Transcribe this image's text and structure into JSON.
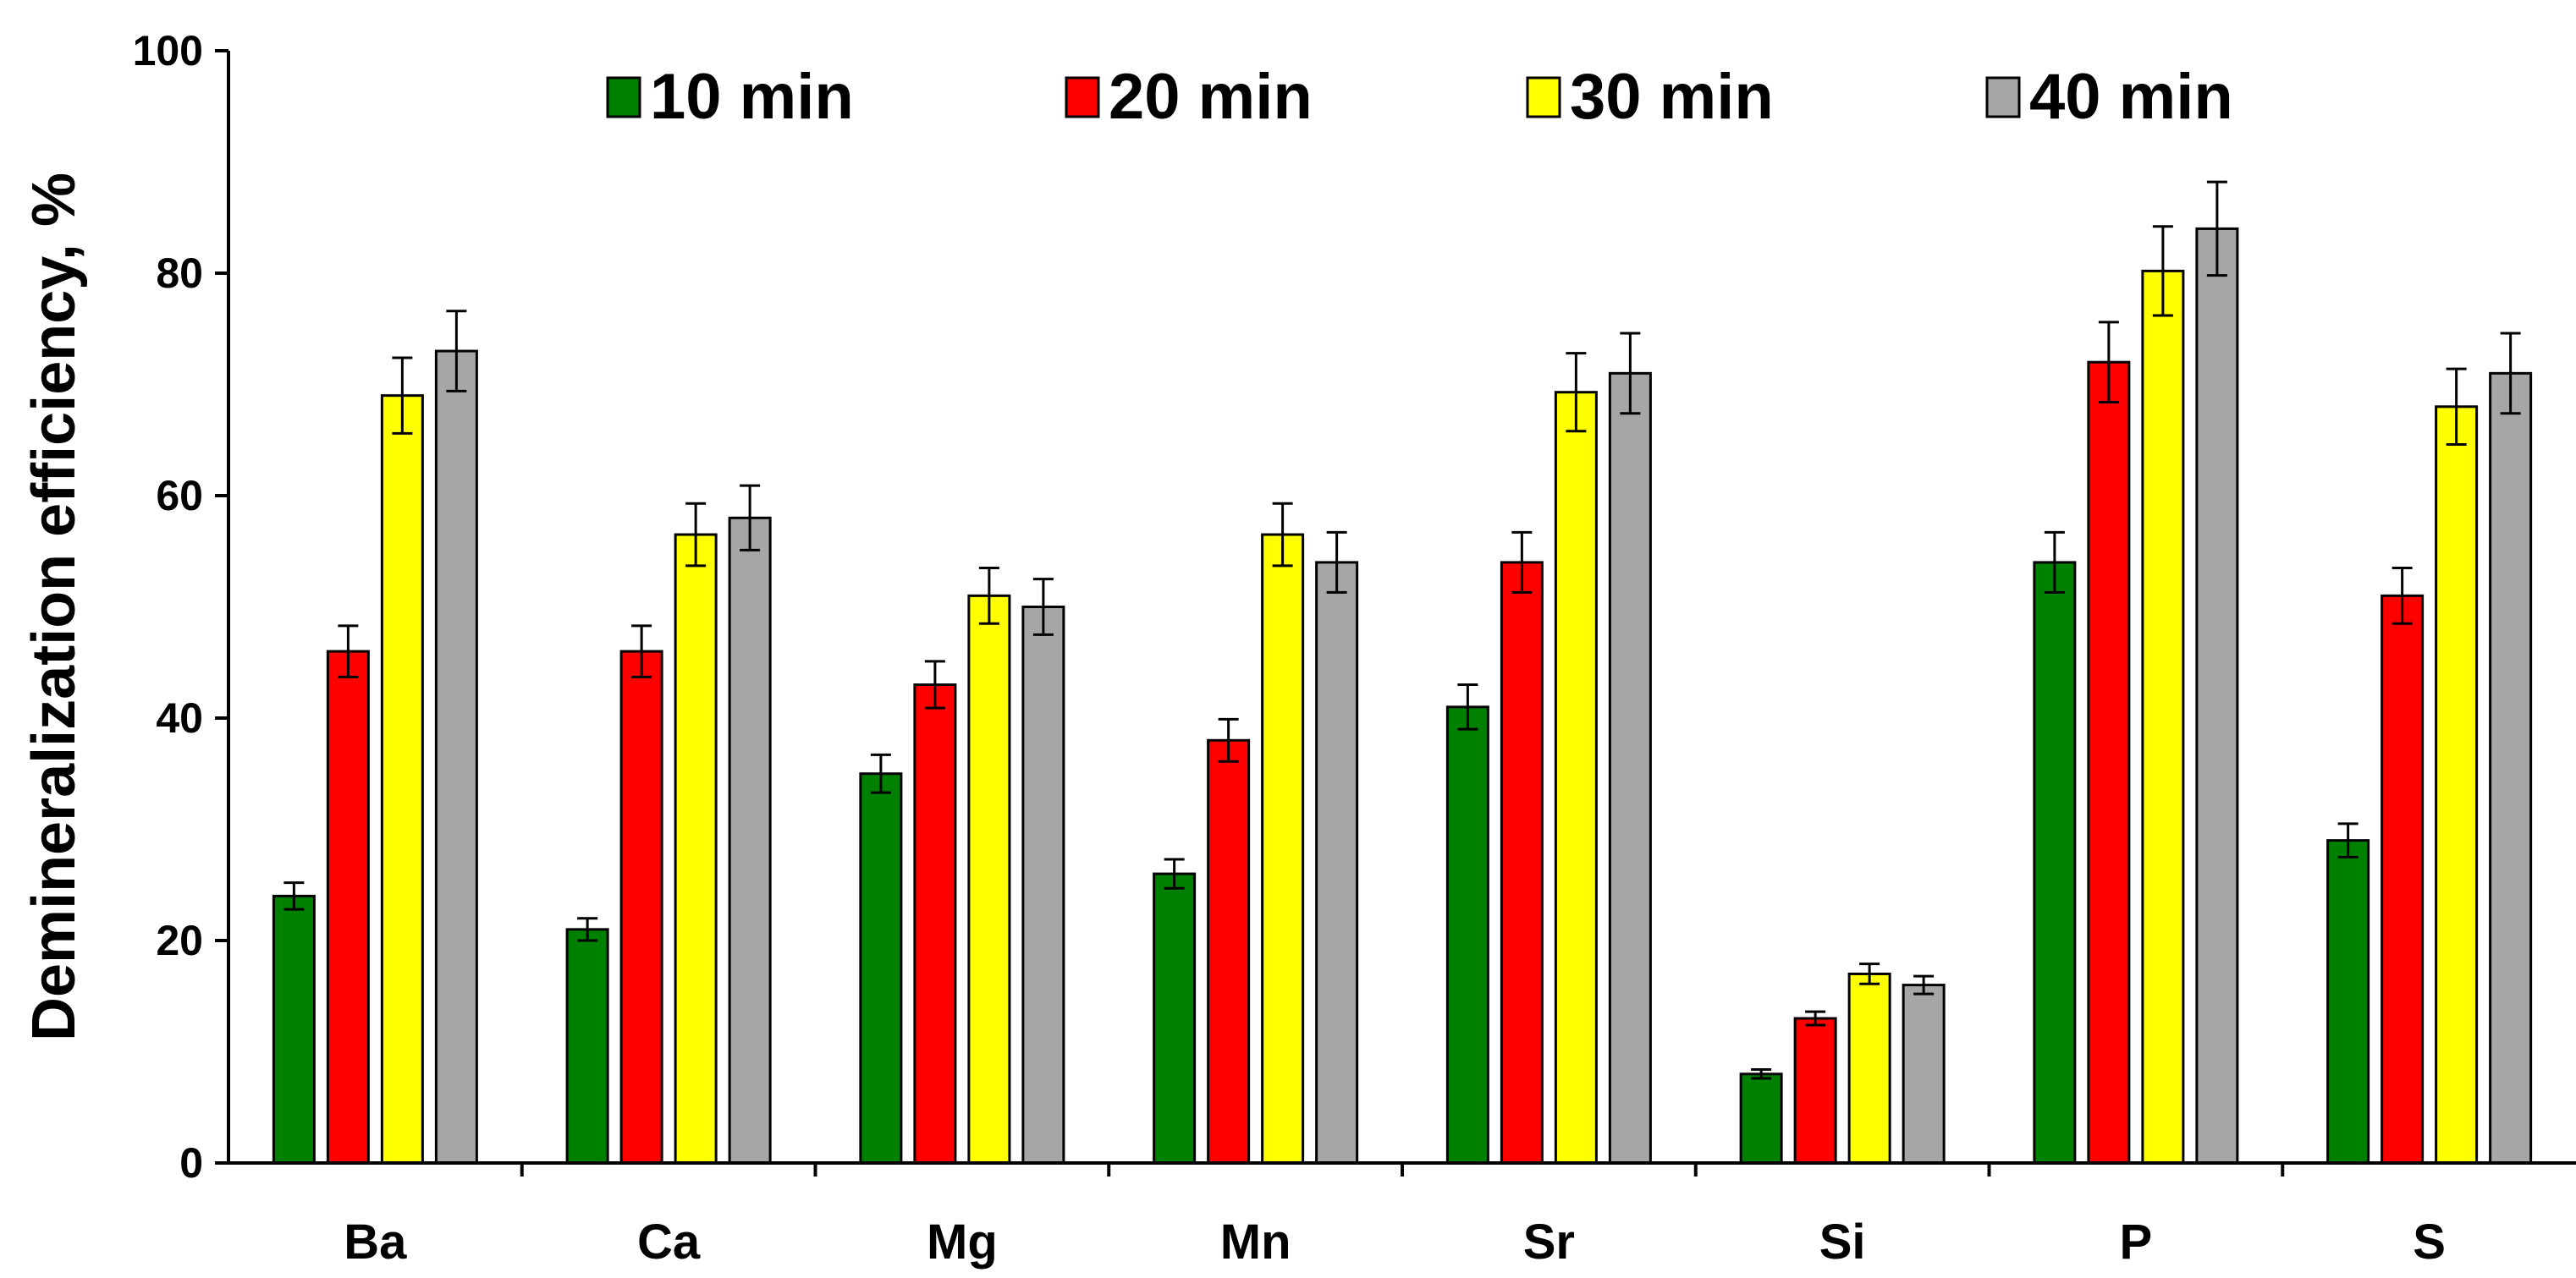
{
  "chart_data": {
    "type": "bar",
    "title": "",
    "xlabel": "",
    "ylabel": "Demineralization efficiency, %",
    "ylim": [
      0,
      100
    ],
    "yticks": [
      0,
      20,
      40,
      60,
      80,
      100
    ],
    "grid": false,
    "legend_position": "top",
    "categories": [
      "Ba",
      "Ca",
      "Mg",
      "Mn",
      "Sr",
      "Si",
      "P",
      "S"
    ],
    "series": [
      {
        "name": "10 min",
        "color": "#008000",
        "values": [
          24,
          21,
          35,
          26,
          41,
          8,
          54,
          29
        ],
        "errors": [
          1.2,
          1.0,
          1.7,
          1.3,
          2.0,
          0.4,
          2.7,
          1.5
        ]
      },
      {
        "name": "20 min",
        "color": "#ff0000",
        "values": [
          46,
          46,
          43,
          38,
          54,
          13,
          72,
          51
        ],
        "errors": [
          2.3,
          2.3,
          2.1,
          1.9,
          2.7,
          0.6,
          3.6,
          2.5
        ]
      },
      {
        "name": "30 min",
        "color": "#ffff00",
        "values": [
          69,
          56.5,
          51,
          56.5,
          69.3,
          17,
          80.2,
          68
        ],
        "errors": [
          3.4,
          2.8,
          2.5,
          2.8,
          3.5,
          0.9,
          4.0,
          3.4
        ]
      },
      {
        "name": "40 min",
        "color": "#a6a6a6",
        "values": [
          73,
          58,
          50,
          54,
          71,
          16,
          84,
          71
        ],
        "errors": [
          3.6,
          2.9,
          2.5,
          2.7,
          3.6,
          0.8,
          4.2,
          3.6
        ]
      }
    ]
  }
}
